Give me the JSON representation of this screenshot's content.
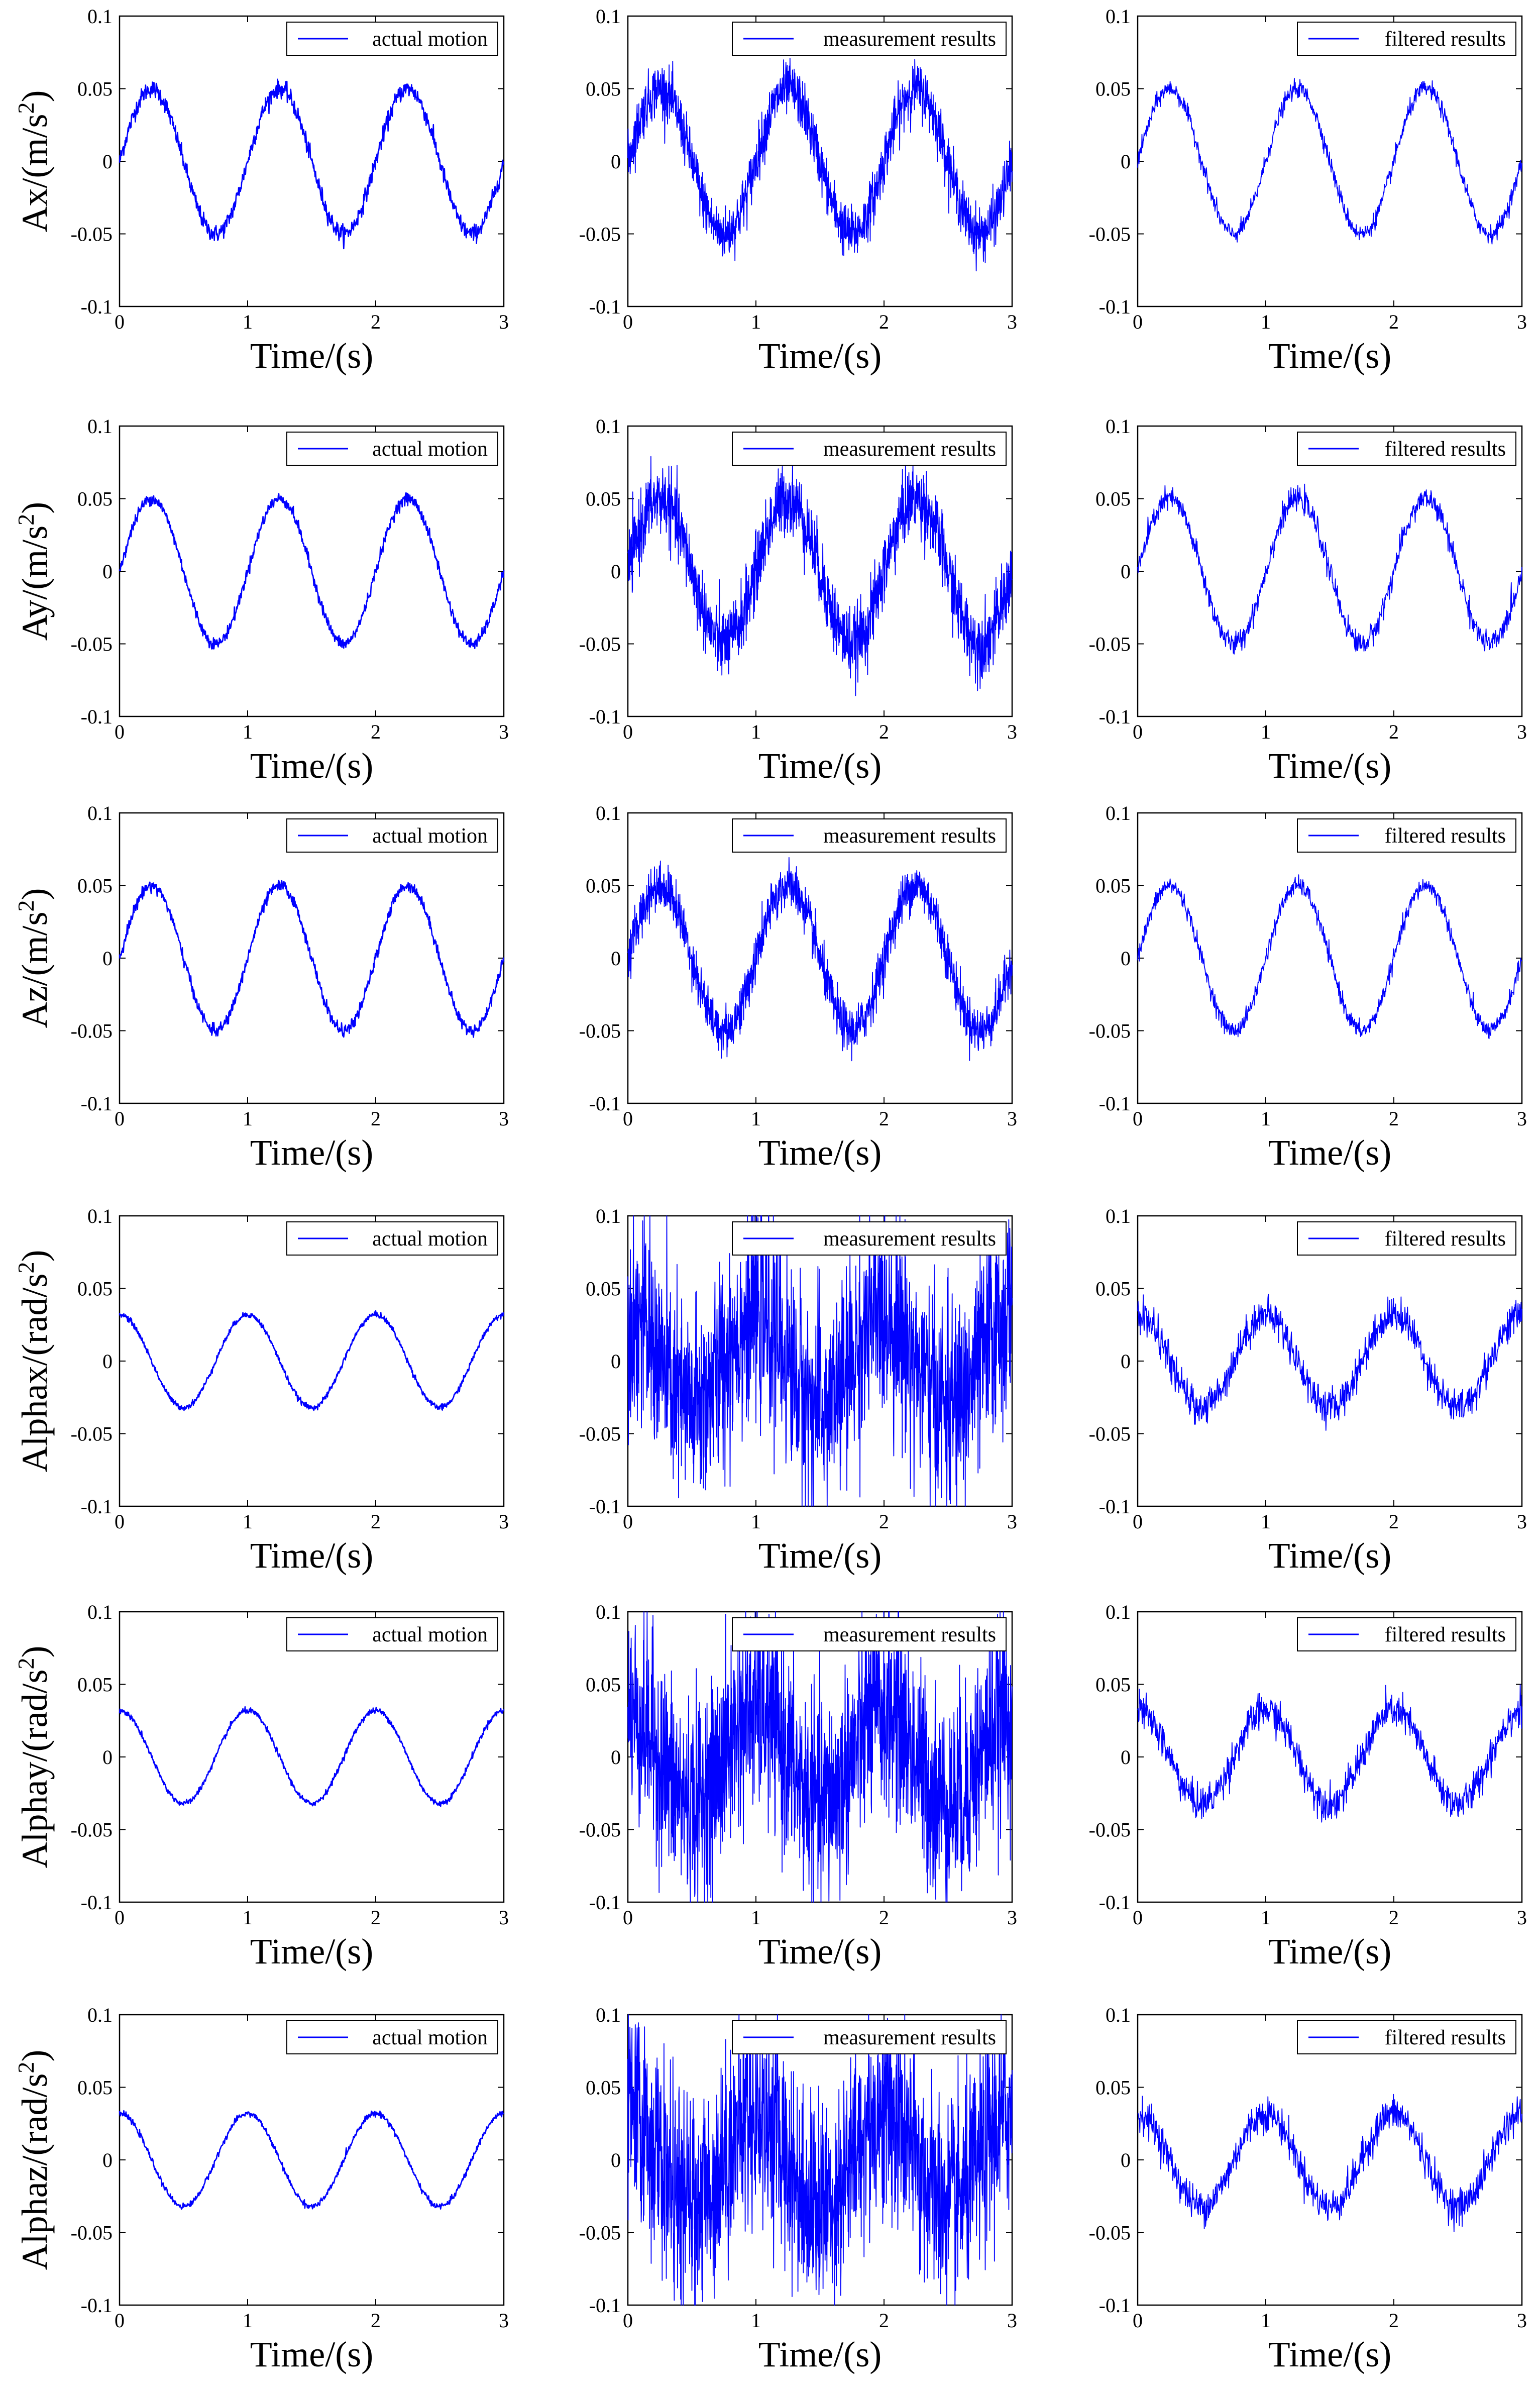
{
  "colors": {
    "series": "#0000ff",
    "axes": "#000000",
    "background": "#ffffff"
  },
  "figure": {
    "rows": [
      {
        "ylabel_main": "Ax/(m/s",
        "ylabel_sup": "2",
        "ylabel_tail": ")",
        "amplitude": 0.05,
        "phase": "sin",
        "noise": [
          0.003,
          0.009,
          0.003
        ]
      },
      {
        "ylabel_main": "Ay/(m/s",
        "ylabel_sup": "2",
        "ylabel_tail": ")",
        "amplitude": 0.05,
        "phase": "sin",
        "noise": [
          0.002,
          0.012,
          0.004
        ]
      },
      {
        "ylabel_main": "Az/(m/s",
        "ylabel_sup": "2",
        "ylabel_tail": ")",
        "amplitude": 0.05,
        "phase": "sin",
        "noise": [
          0.002,
          0.008,
          0.003
        ]
      },
      {
        "ylabel_main": "Alphax/(rad/s",
        "ylabel_sup": "2",
        "ylabel_tail": ")",
        "amplitude": 0.032,
        "phase": "cos",
        "noise": [
          0.001,
          0.035,
          0.006
        ]
      },
      {
        "ylabel_main": "Alphay/(rad/s",
        "ylabel_sup": "2",
        "ylabel_tail": ")",
        "amplitude": 0.032,
        "phase": "cos",
        "noise": [
          0.001,
          0.035,
          0.006
        ]
      },
      {
        "ylabel_main": "Alphaz/(rad/s",
        "ylabel_sup": "2",
        "ylabel_tail": ")",
        "amplitude": 0.032,
        "phase": "cos",
        "noise": [
          0.001,
          0.035,
          0.006
        ]
      }
    ],
    "columns": [
      {
        "legend": "actual motion"
      },
      {
        "legend": "measurement results"
      },
      {
        "legend": "filtered results"
      }
    ]
  },
  "chart_data": {
    "type": "line",
    "layout": "6x3 grid of line plots",
    "xlabel": "Time/(s)",
    "xlim": [
      0,
      3
    ],
    "ylim": [
      -0.1,
      0.1
    ],
    "xticks": [
      "0",
      "1",
      "2",
      "3"
    ],
    "yticks": [
      "-0.1",
      "-0.05",
      "0",
      "0.05",
      "0.1"
    ],
    "signal": {
      "linear_acceleration": "0.05 * sin(2*pi*t), t in [0,3] s",
      "angular_acceleration": "0.032 * cos(2*pi*t), t in [0,3] s"
    },
    "series": [
      "actual motion",
      "measurement results",
      "filtered results"
    ]
  }
}
